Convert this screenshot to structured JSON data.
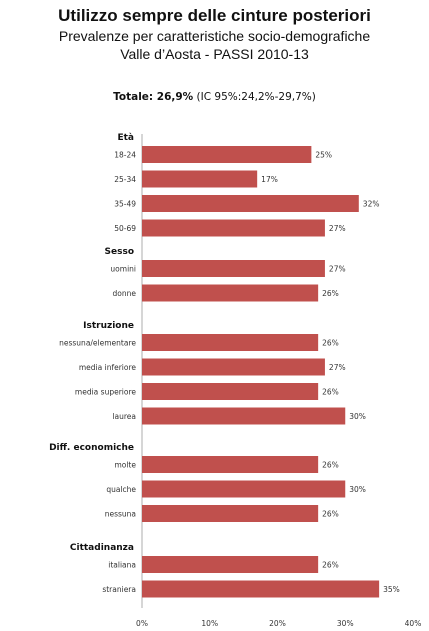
{
  "chart_data": {
    "type": "bar",
    "orientation": "horizontal",
    "title": "Utilizzo sempre delle cinture posteriori",
    "subtitle_line1": "Prevalenze per caratteristiche socio-demografiche",
    "subtitle_line2": "Valle d’Aosta - PASSI 2010-13",
    "total_label": "Totale: 26,9%",
    "total_ci": "(IC 95%:24,2%-29,7%)",
    "xlim": [
      0,
      40
    ],
    "x_ticks": [
      "0%",
      "10%",
      "20%",
      "30%",
      "40%"
    ],
    "bar_color": "#c0504d",
    "groups": [
      {
        "name": "Età",
        "items": [
          {
            "label": "18-24",
            "value": 25,
            "value_label": "25%"
          },
          {
            "label": "25-34",
            "value": 17,
            "value_label": "17%"
          },
          {
            "label": "35-49",
            "value": 32,
            "value_label": "32%"
          },
          {
            "label": "50-69",
            "value": 27,
            "value_label": "27%"
          }
        ]
      },
      {
        "name": "Sesso",
        "items": [
          {
            "label": "uomini",
            "value": 27,
            "value_label": "27%"
          },
          {
            "label": "donne",
            "value": 26,
            "value_label": "26%"
          }
        ]
      },
      {
        "name": "Istruzione",
        "items": [
          {
            "label": "nessuna/elementare",
            "value": 26,
            "value_label": "26%"
          },
          {
            "label": "media inferiore",
            "value": 27,
            "value_label": "27%"
          },
          {
            "label": "media superiore",
            "value": 26,
            "value_label": "26%"
          },
          {
            "label": "laurea",
            "value": 30,
            "value_label": "30%"
          }
        ]
      },
      {
        "name": "Diff. economiche",
        "items": [
          {
            "label": "molte",
            "value": 26,
            "value_label": "26%"
          },
          {
            "label": "qualche",
            "value": 30,
            "value_label": "30%"
          },
          {
            "label": "nessuna",
            "value": 26,
            "value_label": "26%"
          }
        ]
      },
      {
        "name": "Cittadinanza",
        "items": [
          {
            "label": "italiana",
            "value": 26,
            "value_label": "26%"
          },
          {
            "label": "straniera",
            "value": 35,
            "value_label": "35%"
          }
        ]
      }
    ]
  }
}
